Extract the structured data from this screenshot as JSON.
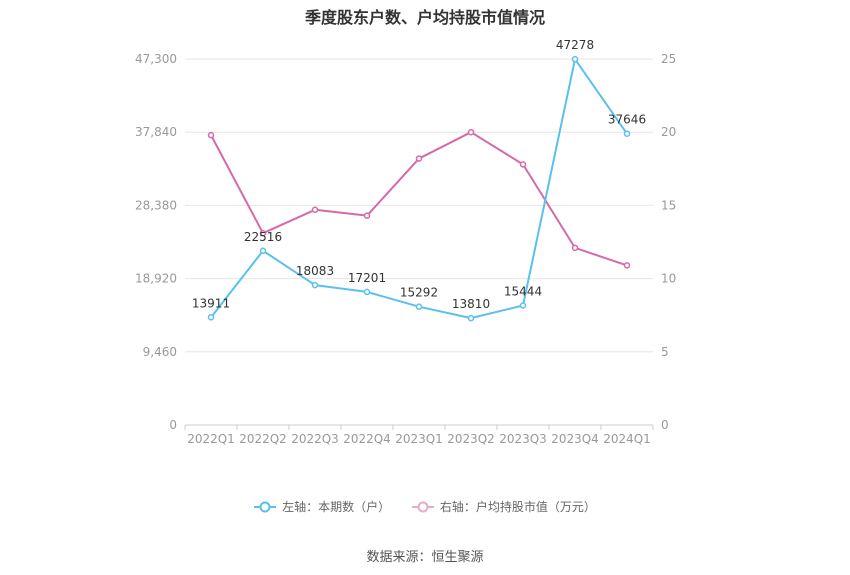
{
  "title": "季度股东户数、户均持股市值情况",
  "source": "数据来源：恒生聚源",
  "colors": {
    "left": "#5bc0eb",
    "right": "#d46aa8",
    "grid": "#e6e6e6",
    "axis": "#cccccc"
  },
  "chart_data": {
    "type": "line",
    "title": "季度股东户数、户均持股市值情况",
    "categories": [
      "2022Q1",
      "2022Q2",
      "2022Q3",
      "2022Q4",
      "2023Q1",
      "2023Q2",
      "2023Q3",
      "2023Q4",
      "2024Q1"
    ],
    "left_axis": {
      "min": 0,
      "max": 47300,
      "ticks": [
        0,
        9460,
        18920,
        28380,
        37840,
        47300
      ],
      "tick_labels": [
        "0",
        "9,460",
        "18,920",
        "28,380",
        "37,840",
        "47,300"
      ]
    },
    "right_axis": {
      "min": 0,
      "max": 25,
      "ticks": [
        0,
        5,
        10,
        15,
        20,
        25
      ],
      "tick_labels": [
        "0",
        "5",
        "10",
        "15",
        "20",
        "25"
      ]
    },
    "series": [
      {
        "name": "左轴：本期数（户）",
        "axis": "left",
        "values": [
          13911,
          22516,
          18083,
          17201,
          15292,
          13810,
          15444,
          47278,
          37646
        ],
        "labels": [
          "13911",
          "22516",
          "18083",
          "17201",
          "15292",
          "13810",
          "15444",
          "47278",
          "37646"
        ]
      },
      {
        "name": "右轴：户均持股市值（万元）",
        "axis": "right",
        "values": [
          19.8,
          13.1,
          14.7,
          14.3,
          18.2,
          20.0,
          17.8,
          12.1,
          10.9
        ]
      }
    ],
    "grid": true,
    "legend_position": "bottom"
  }
}
